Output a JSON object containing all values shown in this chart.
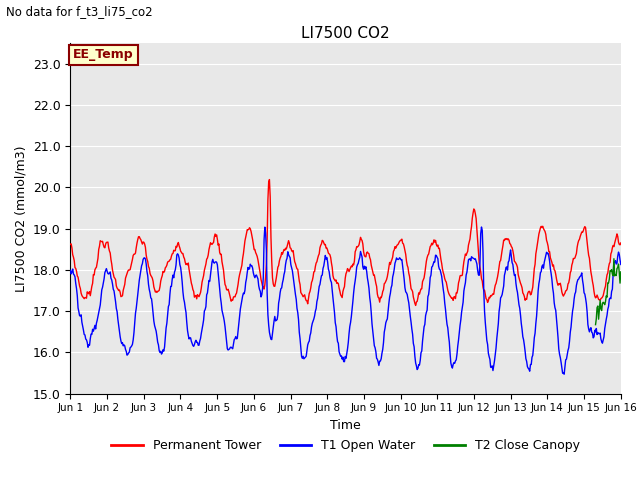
{
  "title": "LI7500 CO2",
  "subtitle": "No data for f_t3_li75_co2",
  "ylabel": "LI7500 CO2 (mmol/m3)",
  "xlabel": "Time",
  "ylim": [
    15.0,
    23.5
  ],
  "yticks": [
    15.0,
    16.0,
    17.0,
    18.0,
    19.0,
    20.0,
    21.0,
    22.0,
    23.0
  ],
  "xtick_labels": [
    "Jun 1",
    "Jun 2",
    "Jun 3",
    "Jun 4",
    "Jun 5",
    "Jun 6",
    "Jun 7",
    "Jun 8",
    "Jun 9",
    "Jun 10",
    "Jun 11",
    "Jun 12",
    "Jun 13",
    "Jun 14",
    "Jun 15",
    "Jun 16"
  ],
  "legend_labels": [
    "Permanent Tower",
    "T1 Open Water",
    "T2 Close Canopy"
  ],
  "legend_colors": [
    "red",
    "blue",
    "green"
  ],
  "annotation_text": "EE_Temp",
  "annotation_color": "#8B0000",
  "annotation_bg": "#FFFFCC",
  "plot_bg_color": "#E8E8E8",
  "fig_bg_color": "#ffffff",
  "line_width": 1.0,
  "figsize": [
    6.4,
    4.8
  ],
  "dpi": 100
}
